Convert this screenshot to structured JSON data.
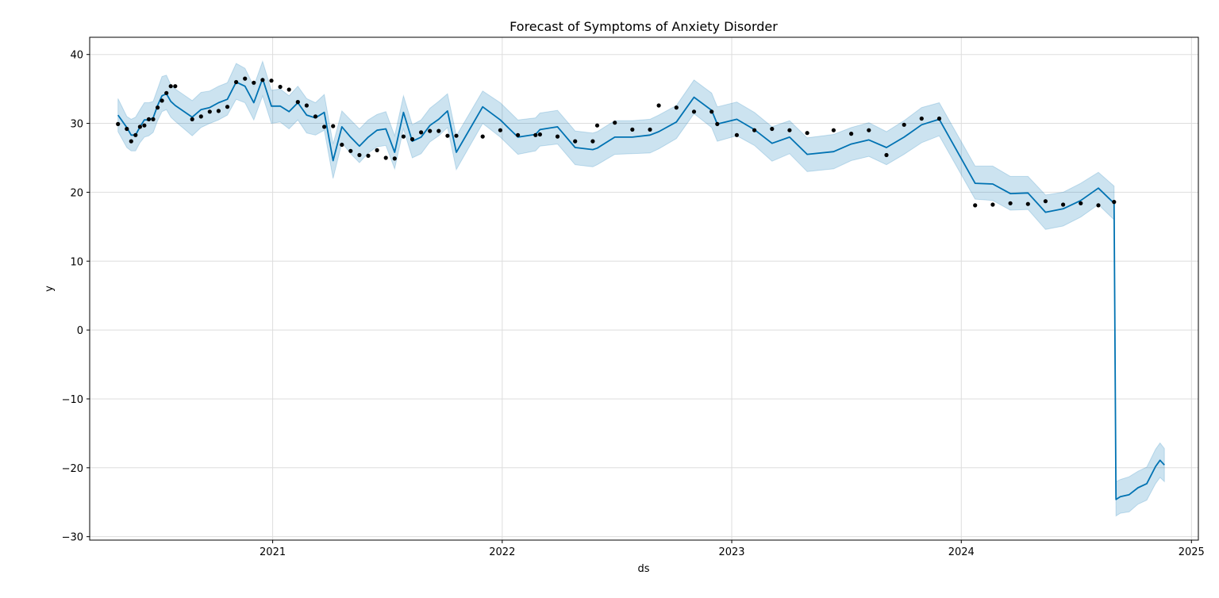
{
  "chart_data": {
    "type": "line",
    "title": "Forecast of Symptoms of Anxiety Disorder",
    "xlabel": "ds",
    "ylabel": "y",
    "xlim": [
      "2020-03-16",
      "2025-01-12"
    ],
    "ylim": [
      -30.5,
      42.5
    ],
    "x_ticks": [
      "2021-01-01",
      "2022-01-01",
      "2023-01-01",
      "2024-01-01",
      "2025-01-01"
    ],
    "x_tick_labels": [
      "2021",
      "2022",
      "2023",
      "2024",
      "2025"
    ],
    "y_ticks": [
      -30,
      -20,
      -10,
      0,
      10,
      20,
      30,
      40
    ],
    "y_tick_labels": [
      "−30",
      "−20",
      "−10",
      "0",
      "10",
      "20",
      "30",
      "40"
    ],
    "grid": true,
    "colors": {
      "forecast_line": "#0072B2",
      "uncertainty_band": "#0072B2",
      "observed_points": "#000000"
    },
    "series": [
      {
        "kind": "observed",
        "points": [
          [
            "2020-04-30",
            29.9
          ],
          [
            "2020-05-14",
            29.2
          ],
          [
            "2020-05-21",
            27.4
          ],
          [
            "2020-05-28",
            28.3
          ],
          [
            "2020-06-04",
            29.5
          ],
          [
            "2020-06-11",
            29.7
          ],
          [
            "2020-06-18",
            30.6
          ],
          [
            "2020-06-25",
            30.6
          ],
          [
            "2020-07-02",
            32.3
          ],
          [
            "2020-07-09",
            33.3
          ],
          [
            "2020-07-16",
            34.4
          ],
          [
            "2020-07-23",
            35.4
          ],
          [
            "2020-07-30",
            35.4
          ],
          [
            "2020-08-26",
            30.6
          ],
          [
            "2020-09-09",
            31.0
          ],
          [
            "2020-09-23",
            31.7
          ],
          [
            "2020-10-07",
            31.8
          ],
          [
            "2020-10-21",
            32.4
          ],
          [
            "2020-11-04",
            36.0
          ],
          [
            "2020-11-18",
            36.5
          ],
          [
            "2020-12-02",
            35.9
          ],
          [
            "2020-12-16",
            36.3
          ],
          [
            "2020-12-30",
            36.2
          ],
          [
            "2021-01-13",
            35.3
          ],
          [
            "2021-01-27",
            34.9
          ],
          [
            "2021-02-10",
            33.1
          ],
          [
            "2021-02-24",
            32.6
          ],
          [
            "2021-03-10",
            31.0
          ],
          [
            "2021-03-24",
            29.5
          ],
          [
            "2021-04-07",
            29.6
          ],
          [
            "2021-04-21",
            26.9
          ],
          [
            "2021-05-05",
            26.0
          ],
          [
            "2021-05-19",
            25.4
          ],
          [
            "2021-06-02",
            25.3
          ],
          [
            "2021-06-16",
            26.1
          ],
          [
            "2021-06-30",
            25.0
          ],
          [
            "2021-07-14",
            24.9
          ],
          [
            "2021-07-28",
            28.1
          ],
          [
            "2021-08-11",
            27.7
          ],
          [
            "2021-08-25",
            28.7
          ],
          [
            "2021-09-08",
            28.9
          ],
          [
            "2021-09-22",
            28.9
          ],
          [
            "2021-10-06",
            28.2
          ],
          [
            "2021-10-20",
            28.2
          ],
          [
            "2021-12-01",
            28.1
          ],
          [
            "2021-12-29",
            29.0
          ],
          [
            "2022-01-26",
            28.3
          ],
          [
            "2022-02-23",
            28.3
          ],
          [
            "2022-03-02",
            28.4
          ],
          [
            "2022-03-30",
            28.1
          ],
          [
            "2022-04-27",
            27.4
          ],
          [
            "2022-05-25",
            27.4
          ],
          [
            "2022-06-01",
            29.7
          ],
          [
            "2022-06-29",
            30.1
          ],
          [
            "2022-07-27",
            29.1
          ],
          [
            "2022-08-24",
            29.1
          ],
          [
            "2022-09-07",
            32.6
          ],
          [
            "2022-10-05",
            32.3
          ],
          [
            "2022-11-02",
            31.7
          ],
          [
            "2022-11-30",
            31.7
          ],
          [
            "2022-12-09",
            29.9
          ],
          [
            "2023-01-09",
            28.3
          ],
          [
            "2023-02-06",
            29.0
          ],
          [
            "2023-03-06",
            29.2
          ],
          [
            "2023-04-03",
            29.0
          ],
          [
            "2023-05-01",
            28.6
          ],
          [
            "2023-06-12",
            29.0
          ],
          [
            "2023-07-10",
            28.5
          ],
          [
            "2023-08-07",
            29.0
          ],
          [
            "2023-09-04",
            25.4
          ],
          [
            "2023-10-02",
            29.8
          ],
          [
            "2023-10-30",
            30.7
          ],
          [
            "2023-11-27",
            30.7
          ],
          [
            "2024-01-23",
            18.1
          ],
          [
            "2024-02-20",
            18.2
          ],
          [
            "2024-03-19",
            18.4
          ],
          [
            "2024-04-16",
            18.3
          ],
          [
            "2024-05-14",
            18.7
          ],
          [
            "2024-06-11",
            18.2
          ],
          [
            "2024-07-09",
            18.4
          ],
          [
            "2024-08-06",
            18.1
          ],
          [
            "2024-08-31",
            18.6
          ]
        ]
      },
      {
        "kind": "forecast",
        "points": [
          [
            "2020-04-30",
            31.2,
            33.6,
            28.8
          ],
          [
            "2020-05-14",
            29.4,
            31.0,
            26.5
          ],
          [
            "2020-05-21",
            28.3,
            30.6,
            26.0
          ],
          [
            "2020-05-28",
            28.3,
            30.9,
            26.0
          ],
          [
            "2020-06-04",
            29.5,
            32.0,
            27.2
          ],
          [
            "2020-06-11",
            30.5,
            33.0,
            28.0
          ],
          [
            "2020-06-18",
            30.5,
            33.0,
            28.2
          ],
          [
            "2020-06-25",
            30.8,
            33.2,
            28.7
          ],
          [
            "2020-07-02",
            32.6,
            35.0,
            30.4
          ],
          [
            "2020-07-09",
            34.0,
            36.8,
            31.7
          ],
          [
            "2020-07-16",
            34.3,
            37.0,
            32.0
          ],
          [
            "2020-07-23",
            33.2,
            35.6,
            30.9
          ],
          [
            "2020-07-30",
            32.6,
            35.0,
            30.3
          ],
          [
            "2020-08-26",
            30.9,
            33.3,
            28.2
          ],
          [
            "2020-09-09",
            32.0,
            34.5,
            29.4
          ],
          [
            "2020-09-23",
            32.3,
            34.7,
            30.0
          ],
          [
            "2020-10-07",
            33.0,
            35.4,
            30.5
          ],
          [
            "2020-10-21",
            33.5,
            35.9,
            31.2
          ],
          [
            "2020-11-04",
            36.0,
            38.7,
            33.5
          ],
          [
            "2020-11-18",
            35.4,
            38.0,
            33.0
          ],
          [
            "2020-12-02",
            33.0,
            35.4,
            30.5
          ],
          [
            "2020-12-16",
            36.5,
            39.0,
            34.0
          ],
          [
            "2020-12-30",
            32.5,
            34.8,
            30.0
          ],
          [
            "2021-01-13",
            32.5,
            35.0,
            30.2
          ],
          [
            "2021-01-27",
            31.7,
            34.0,
            29.2
          ],
          [
            "2021-02-10",
            33.0,
            35.4,
            30.5
          ],
          [
            "2021-02-24",
            31.2,
            33.6,
            28.6
          ],
          [
            "2021-03-10",
            30.8,
            33.0,
            28.3
          ],
          [
            "2021-03-24",
            31.6,
            34.2,
            29.0
          ],
          [
            "2021-04-07",
            24.6,
            27.0,
            22.0
          ],
          [
            "2021-04-21",
            29.5,
            31.8,
            27.2
          ],
          [
            "2021-05-05",
            28.0,
            30.5,
            25.6
          ],
          [
            "2021-05-19",
            26.7,
            29.2,
            24.3
          ],
          [
            "2021-06-02",
            28.0,
            30.5,
            25.7
          ],
          [
            "2021-06-16",
            29.0,
            31.3,
            26.6
          ],
          [
            "2021-06-30",
            29.2,
            31.7,
            26.8
          ],
          [
            "2021-07-14",
            25.8,
            28.2,
            23.4
          ],
          [
            "2021-07-28",
            31.6,
            34.0,
            29.2
          ],
          [
            "2021-08-11",
            27.4,
            29.8,
            25.0
          ],
          [
            "2021-08-25",
            28.0,
            30.5,
            25.6
          ],
          [
            "2021-09-08",
            29.7,
            32.2,
            27.3
          ],
          [
            "2021-09-22",
            30.6,
            33.2,
            28.2
          ],
          [
            "2021-10-06",
            31.8,
            34.3,
            29.4
          ],
          [
            "2021-10-20",
            25.8,
            28.2,
            23.3
          ],
          [
            "2021-12-01",
            32.4,
            34.7,
            30.0
          ],
          [
            "2021-12-29",
            30.5,
            33.0,
            28.0
          ],
          [
            "2022-01-26",
            28.0,
            30.5,
            25.5
          ],
          [
            "2022-02-23",
            28.4,
            30.8,
            26.0
          ],
          [
            "2022-03-02",
            29.1,
            31.5,
            26.7
          ],
          [
            "2022-03-30",
            29.5,
            31.9,
            27.0
          ],
          [
            "2022-04-27",
            26.5,
            28.9,
            24.0
          ],
          [
            "2022-05-25",
            26.2,
            28.6,
            23.7
          ],
          [
            "2022-06-01",
            26.4,
            28.8,
            24.0
          ],
          [
            "2022-06-29",
            28.0,
            30.4,
            25.5
          ],
          [
            "2022-07-27",
            28.0,
            30.4,
            25.6
          ],
          [
            "2022-08-24",
            28.3,
            30.6,
            25.7
          ],
          [
            "2022-09-07",
            28.8,
            31.2,
            26.3
          ],
          [
            "2022-10-05",
            30.2,
            32.6,
            27.8
          ],
          [
            "2022-11-02",
            33.8,
            36.3,
            31.4
          ],
          [
            "2022-11-30",
            31.9,
            34.4,
            29.4
          ],
          [
            "2022-12-09",
            29.9,
            32.4,
            27.4
          ],
          [
            "2023-01-09",
            30.6,
            33.1,
            28.2
          ],
          [
            "2023-02-06",
            29.1,
            31.6,
            26.8
          ],
          [
            "2023-03-06",
            27.1,
            29.5,
            24.5
          ],
          [
            "2023-04-03",
            28.0,
            30.4,
            25.6
          ],
          [
            "2023-05-01",
            25.5,
            27.9,
            23.0
          ],
          [
            "2023-06-12",
            25.9,
            28.4,
            23.4
          ],
          [
            "2023-07-10",
            27.0,
            29.4,
            24.6
          ],
          [
            "2023-08-07",
            27.6,
            30.1,
            25.2
          ],
          [
            "2023-09-04",
            26.5,
            28.8,
            24.0
          ],
          [
            "2023-10-02",
            28.0,
            30.4,
            25.5
          ],
          [
            "2023-10-30",
            29.8,
            32.3,
            27.2
          ],
          [
            "2023-11-27",
            30.6,
            33.0,
            28.2
          ],
          [
            "2024-01-23",
            21.3,
            23.8,
            19.0
          ],
          [
            "2024-02-20",
            21.2,
            23.8,
            18.8
          ],
          [
            "2024-03-19",
            19.8,
            22.3,
            17.4
          ],
          [
            "2024-04-16",
            19.9,
            22.3,
            17.5
          ],
          [
            "2024-05-14",
            17.1,
            19.6,
            14.6
          ],
          [
            "2024-06-11",
            17.6,
            20.0,
            15.1
          ],
          [
            "2024-07-09",
            18.8,
            21.3,
            16.4
          ],
          [
            "2024-08-06",
            20.6,
            22.9,
            18.2
          ],
          [
            "2024-08-31",
            18.4,
            20.9,
            16.0
          ],
          [
            "2024-09-03",
            -24.6,
            -22.0,
            -27.0
          ],
          [
            "2024-09-10",
            -24.2,
            -21.7,
            -26.6
          ],
          [
            "2024-09-24",
            -23.9,
            -21.3,
            -26.4
          ],
          [
            "2024-10-08",
            -22.9,
            -20.5,
            -25.3
          ],
          [
            "2024-10-22",
            -22.3,
            -19.9,
            -24.7
          ],
          [
            "2024-11-05",
            -19.8,
            -17.3,
            -22.3
          ],
          [
            "2024-11-12",
            -18.9,
            -16.4,
            -21.4
          ],
          [
            "2024-11-19",
            -19.6,
            -17.2,
            -22.0
          ]
        ]
      }
    ]
  }
}
